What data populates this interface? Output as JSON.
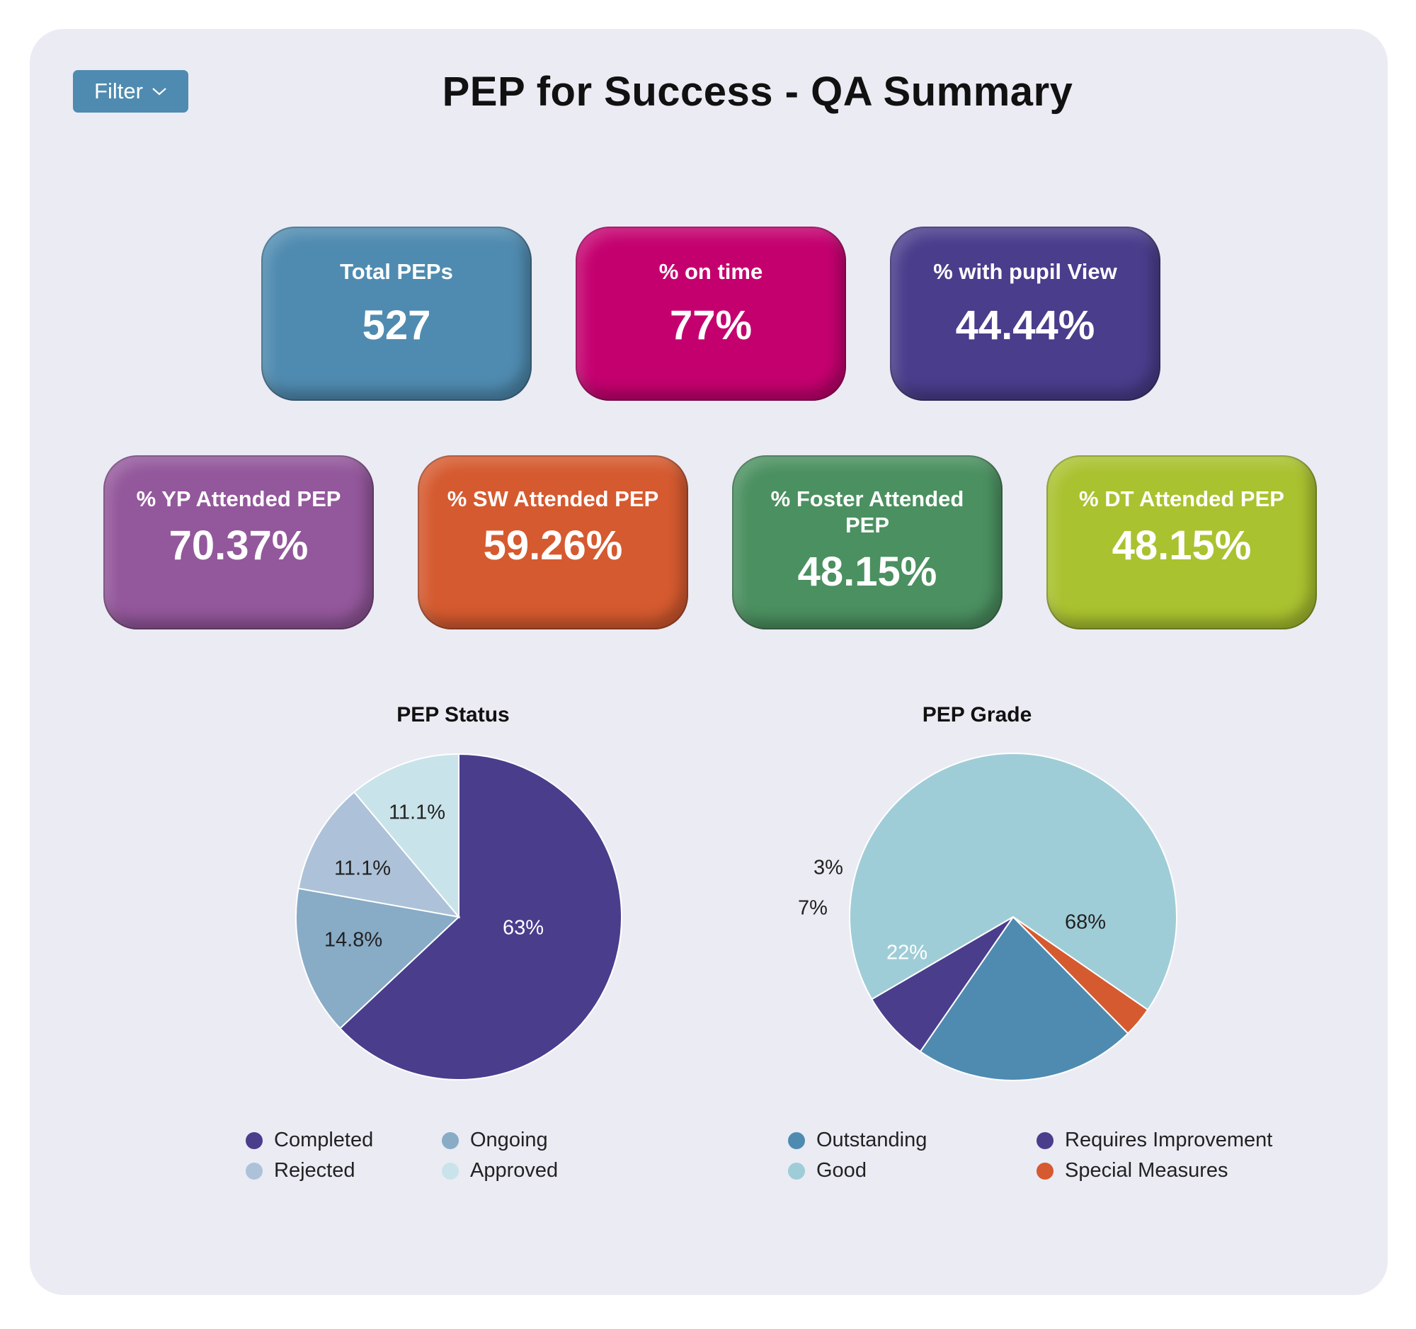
{
  "header": {
    "title": "PEP for Success - QA Summary",
    "filter_label": "Filter"
  },
  "kpis": [
    {
      "label": "Total PEPs",
      "value": "527",
      "color": "#4f8bb0"
    },
    {
      "label": "% on time",
      "value": "77%",
      "color": "#c4006f"
    },
    {
      "label": "% with pupil View",
      "value": "44.44%",
      "color": "#4a3d8c"
    },
    {
      "label": "% YP Attended PEP",
      "value": "70.37%",
      "color": "#93579b"
    },
    {
      "label": "% SW Attended PEP",
      "value": "59.26%",
      "color": "#d55a2f"
    },
    {
      "label": "% Foster Attended PEP",
      "value": "48.15%",
      "color": "#4b9060"
    },
    {
      "label": "% DT Attended PEP",
      "value": "48.15%",
      "color": "#a9c22f"
    }
  ],
  "chart_data": [
    {
      "type": "pie",
      "title": "PEP Status",
      "categories": [
        "Completed",
        "Ongoing",
        "Rejected",
        "Approved"
      ],
      "values": [
        63,
        14.8,
        11.1,
        11.1
      ],
      "labels": [
        "63%",
        "14.8%",
        "11.1%",
        "11.1%"
      ],
      "colors": [
        "#4a3d8c",
        "#88abc6",
        "#adc2d8",
        "#c9e3ea"
      ],
      "label_colors": [
        "#ffffff",
        "#222222",
        "#222222",
        "#222222"
      ],
      "legend_position": "bottom"
    },
    {
      "type": "pie",
      "title": "PEP Grade",
      "categories": [
        "Outstanding",
        "Requires Improvement",
        "Good",
        "Special Measures"
      ],
      "values": [
        22,
        7,
        68,
        3
      ],
      "labels": [
        "22%",
        "7%",
        "68%",
        "3%"
      ],
      "colors": [
        "#4f8bb0",
        "#4a3d8c",
        "#9fcdd7",
        "#d55a2f"
      ],
      "label_colors": [
        "#ffffff",
        "#222222",
        "#222222",
        "#222222"
      ],
      "legend_position": "bottom"
    }
  ]
}
